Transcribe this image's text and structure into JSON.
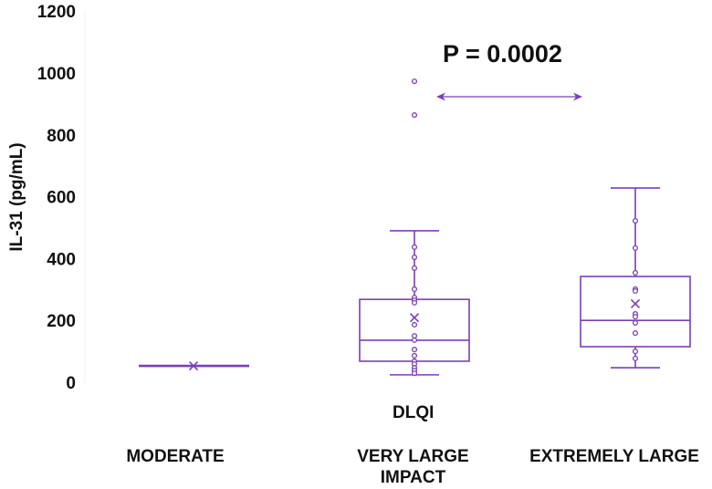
{
  "chart_data": {
    "type": "box",
    "title": "",
    "xlabel": "DLQI",
    "ylabel": "IL-31 (pg/mL)",
    "ylim": [
      0,
      1200
    ],
    "yticks": [
      0,
      200,
      400,
      600,
      800,
      1000,
      1200
    ],
    "grid": false,
    "legend": null,
    "categories": [
      "MODERATE",
      "VERY LARGE IMPACT",
      "EXTREMELY LARGE"
    ],
    "series": [
      {
        "name": "MODERATE",
        "min": 53,
        "q1": 53,
        "median": 53,
        "q3": 53,
        "max": 53,
        "mean": 53,
        "points": [],
        "outliers": []
      },
      {
        "name": "VERY LARGE IMPACT",
        "min": 24,
        "q1": 68,
        "median": 136,
        "q3": 268,
        "max": 490,
        "mean": 209,
        "points": [
          437,
          404,
          369,
          301,
          274,
          265,
          257,
          186,
          150,
          136,
          106,
          86,
          68,
          59,
          47,
          38,
          29
        ],
        "outliers": [
          864,
          973
        ]
      },
      {
        "name": "EXTREMELY LARGE",
        "min": 47,
        "q1": 115,
        "median": 200,
        "q3": 342,
        "max": 628,
        "mean": 254,
        "points": [
          522,
          434,
          354,
          301,
          295,
          221,
          212,
          192,
          159,
          100,
          77
        ],
        "outliers": []
      }
    ],
    "annotations": [
      {
        "text": "P = 0.0002",
        "between": [
          "VERY LARGE IMPACT",
          "EXTREMELY LARGE"
        ],
        "type": "double-arrow"
      }
    ],
    "color": "#7b3fb5"
  },
  "labels": {
    "ylabel": "IL-31 (pg/mL)",
    "xtitle": "DLQI",
    "p_value": "P = 0.0002",
    "cat0": "MODERATE",
    "cat1_line1": "VERY LARGE",
    "cat1_line2": "IMPACT",
    "cat2": "EXTREMELY LARGE",
    "ticks": [
      "0",
      "200",
      "400",
      "600",
      "800",
      "1000",
      "1200"
    ]
  }
}
